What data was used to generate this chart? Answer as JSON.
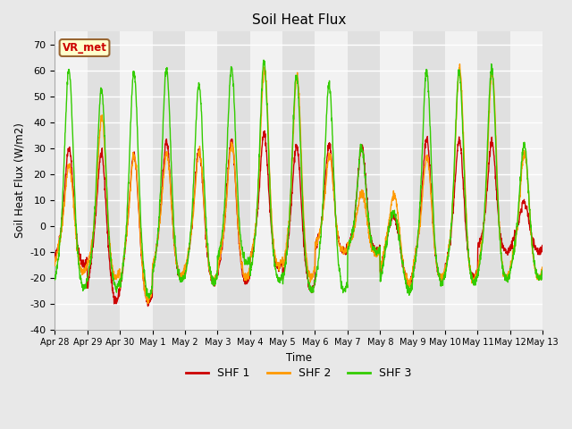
{
  "title": "Soil Heat Flux",
  "ylabel": "Soil Heat Flux (W/m2)",
  "xlabel": "Time",
  "ylim": [
    -40,
    75
  ],
  "yticks": [
    -40,
    -30,
    -20,
    -10,
    0,
    10,
    20,
    30,
    40,
    50,
    60,
    70
  ],
  "colors": {
    "SHF 1": "#cc0000",
    "SHF 2": "#ff9900",
    "SHF 3": "#33cc00"
  },
  "legend_labels": [
    "SHF 1",
    "SHF 2",
    "SHF 3"
  ],
  "annotation_text": "VR_met",
  "annotation_color": "#cc0000",
  "annotation_bg": "#ffffcc",
  "annotation_border": "#996633",
  "fig_bg": "#e8e8e8",
  "plot_bg_light": "#f2f2f2",
  "plot_bg_dark": "#e0e0e0",
  "grid_color": "#ffffff",
  "num_days": 15,
  "points_per_day": 144,
  "tick_labels": [
    "Apr 28",
    "Apr 29",
    "Apr 30",
    "May 1",
    "May 2",
    "May 3",
    "May 4",
    "May 5",
    "May 6",
    "May 7",
    "May 8",
    "May 9",
    "May 10",
    "May 11",
    "May 12",
    "May 13"
  ]
}
